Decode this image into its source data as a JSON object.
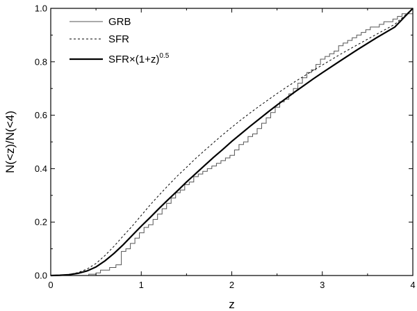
{
  "chart_data": {
    "type": "line",
    "title": "",
    "xlabel": "z",
    "ylabel": "N(<z)/N(<4)",
    "xlim": [
      0,
      4
    ],
    "ylim": [
      0,
      1.0
    ],
    "xticks": [
      0,
      1,
      2,
      3,
      4
    ],
    "xtick_labels": [
      "0",
      "1",
      "2",
      "3",
      "4"
    ],
    "yticks": [
      0,
      0.2,
      0.4,
      0.6,
      0.8,
      1.0
    ],
    "ytick_labels": [
      "0.0",
      "0.2",
      "0.4",
      "0.6",
      "0.8",
      "1.0"
    ],
    "grid": false,
    "legend_position": "top-left",
    "legend": {
      "grb": "GRB",
      "sfr": "SFR",
      "sfr_scaled_prefix": "SFR×(1+z)",
      "sfr_scaled_exponent": "0.5"
    },
    "series": [
      {
        "name": "GRB",
        "style": "step",
        "color": "#555555",
        "x": [
          0,
          0.42,
          0.5,
          0.55,
          0.65,
          0.72,
          0.78,
          0.83,
          0.88,
          0.93,
          0.98,
          1.03,
          1.08,
          1.13,
          1.18,
          1.23,
          1.28,
          1.33,
          1.38,
          1.43,
          1.48,
          1.53,
          1.58,
          1.63,
          1.68,
          1.73,
          1.78,
          1.83,
          1.88,
          1.93,
          1.98,
          2.03,
          2.08,
          2.13,
          2.18,
          2.23,
          2.28,
          2.33,
          2.38,
          2.43,
          2.48,
          2.53,
          2.58,
          2.63,
          2.68,
          2.73,
          2.78,
          2.83,
          2.88,
          2.93,
          2.98,
          3.03,
          3.08,
          3.13,
          3.18,
          3.23,
          3.28,
          3.33,
          3.38,
          3.43,
          3.48,
          3.53,
          3.58,
          3.63,
          3.68,
          3.73,
          3.78,
          3.83,
          3.88,
          4.0
        ],
        "values": [
          0,
          0.005,
          0.01,
          0.02,
          0.03,
          0.04,
          0.09,
          0.1,
          0.12,
          0.14,
          0.16,
          0.18,
          0.19,
          0.21,
          0.23,
          0.25,
          0.27,
          0.29,
          0.31,
          0.32,
          0.34,
          0.35,
          0.37,
          0.38,
          0.39,
          0.4,
          0.41,
          0.42,
          0.43,
          0.44,
          0.45,
          0.47,
          0.49,
          0.5,
          0.52,
          0.53,
          0.55,
          0.57,
          0.59,
          0.61,
          0.63,
          0.65,
          0.66,
          0.68,
          0.7,
          0.72,
          0.74,
          0.76,
          0.77,
          0.79,
          0.81,
          0.82,
          0.83,
          0.84,
          0.86,
          0.87,
          0.88,
          0.89,
          0.9,
          0.91,
          0.92,
          0.93,
          0.93,
          0.94,
          0.95,
          0.95,
          0.96,
          0.97,
          0.98,
          1.0
        ]
      },
      {
        "name": "SFR",
        "style": "dashed",
        "color": "#000000",
        "x": [
          0,
          0.1,
          0.2,
          0.3,
          0.4,
          0.5,
          0.6,
          0.7,
          0.8,
          0.9,
          1.0,
          1.1,
          1.2,
          1.3,
          1.4,
          1.5,
          1.6,
          1.7,
          1.8,
          1.9,
          2.0,
          2.1,
          2.2,
          2.3,
          2.4,
          2.5,
          2.6,
          2.7,
          2.8,
          2.9,
          3.0,
          3.2,
          3.4,
          3.6,
          3.8,
          4.0
        ],
        "values": [
          0,
          0.001,
          0.004,
          0.011,
          0.024,
          0.045,
          0.075,
          0.11,
          0.148,
          0.185,
          0.225,
          0.265,
          0.302,
          0.338,
          0.373,
          0.405,
          0.438,
          0.468,
          0.498,
          0.527,
          0.555,
          0.582,
          0.608,
          0.633,
          0.657,
          0.681,
          0.704,
          0.726,
          0.747,
          0.768,
          0.788,
          0.828,
          0.866,
          0.903,
          0.94,
          1.0
        ]
      },
      {
        "name": "SFR×(1+z)^0.5",
        "style": "solid-thick",
        "color": "#000000",
        "x": [
          0,
          0.1,
          0.2,
          0.3,
          0.4,
          0.5,
          0.6,
          0.7,
          0.8,
          0.9,
          1.0,
          1.1,
          1.2,
          1.3,
          1.4,
          1.5,
          1.6,
          1.7,
          1.8,
          1.9,
          2.0,
          2.1,
          2.2,
          2.3,
          2.4,
          2.5,
          2.6,
          2.7,
          2.8,
          2.9,
          3.0,
          3.2,
          3.4,
          3.6,
          3.8,
          4.0
        ],
        "values": [
          0,
          0.001,
          0.003,
          0.008,
          0.017,
          0.032,
          0.055,
          0.083,
          0.115,
          0.15,
          0.185,
          0.218,
          0.252,
          0.285,
          0.317,
          0.35,
          0.381,
          0.412,
          0.443,
          0.472,
          0.502,
          0.53,
          0.558,
          0.585,
          0.612,
          0.638,
          0.663,
          0.688,
          0.712,
          0.736,
          0.759,
          0.804,
          0.848,
          0.89,
          0.93,
          1.0
        ]
      }
    ]
  }
}
